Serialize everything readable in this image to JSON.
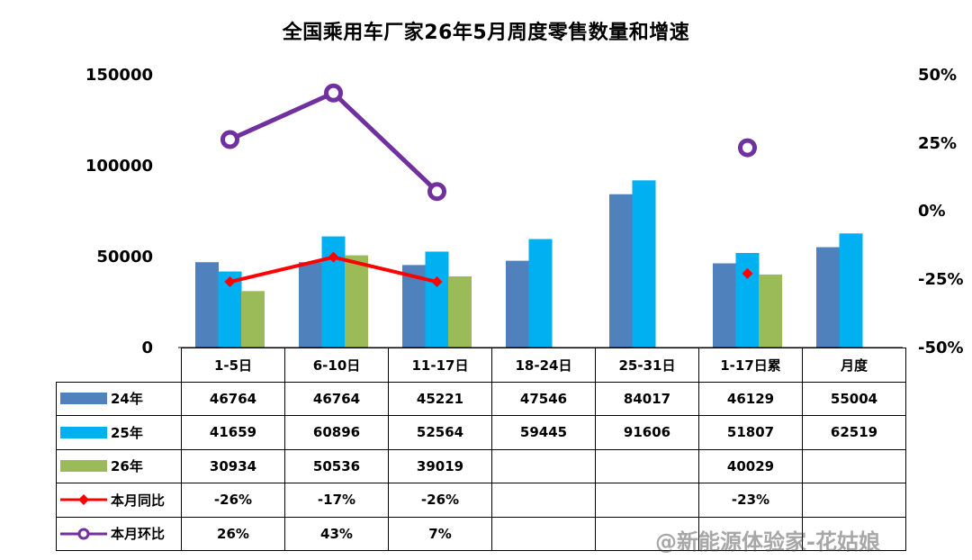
{
  "chart_data": {
    "type": "bar",
    "title": "全国乘用车厂家26年5月周度零售数量和增速",
    "categories": [
      "1-5日",
      "6-10日",
      "11-17日",
      "18-24日",
      "25-31日",
      "1-17日累",
      "月度"
    ],
    "y_left": {
      "ticks": [
        "150000",
        "100000",
        "50000",
        "0"
      ],
      "ylim": [
        0,
        150000
      ]
    },
    "y_right": {
      "ticks": [
        "50%",
        "25%",
        "0%",
        "-25%",
        "-50%"
      ],
      "ylim": [
        -50,
        50
      ]
    },
    "series": [
      {
        "name": "24年",
        "kind": "bar",
        "axis": "left",
        "color": "#4f81bd",
        "values": [
          46764,
          46764,
          45221,
          47546,
          84017,
          46129,
          55004
        ],
        "labels": [
          "46764",
          "46764",
          "45221",
          "47546",
          "84017",
          "46129",
          "55004"
        ]
      },
      {
        "name": "25年",
        "kind": "bar",
        "axis": "left",
        "color": "#00b0f0",
        "values": [
          41659,
          60896,
          52564,
          59445,
          91606,
          51807,
          62519
        ],
        "labels": [
          "41659",
          "60896",
          "52564",
          "59445",
          "91606",
          "51807",
          "62519"
        ]
      },
      {
        "name": "26年",
        "kind": "bar",
        "axis": "left",
        "color": "#9bbb59",
        "values": [
          30934,
          50536,
          39019,
          null,
          null,
          40029,
          null
        ],
        "labels": [
          "30934",
          "50536",
          "39019",
          "",
          "",
          "40029",
          ""
        ]
      },
      {
        "name": "本月同比",
        "kind": "line",
        "axis": "right",
        "color": "#ff0000",
        "marker": "diamond",
        "values": [
          -26,
          -17,
          -26,
          null,
          null,
          -23,
          null
        ],
        "labels": [
          "-26%",
          "-17%",
          "-26%",
          "",
          "",
          "-23%",
          ""
        ]
      },
      {
        "name": "本月环比",
        "kind": "line",
        "axis": "right",
        "color": "#7030a0",
        "marker": "circle",
        "values": [
          26,
          43,
          7,
          null,
          null,
          23,
          null
        ],
        "labels": [
          "26%",
          "43%",
          "7%",
          "",
          "",
          "",
          ""
        ]
      }
    ],
    "grid": false,
    "legend": "table"
  },
  "watermark": "@新能源体验家-花姑娘"
}
